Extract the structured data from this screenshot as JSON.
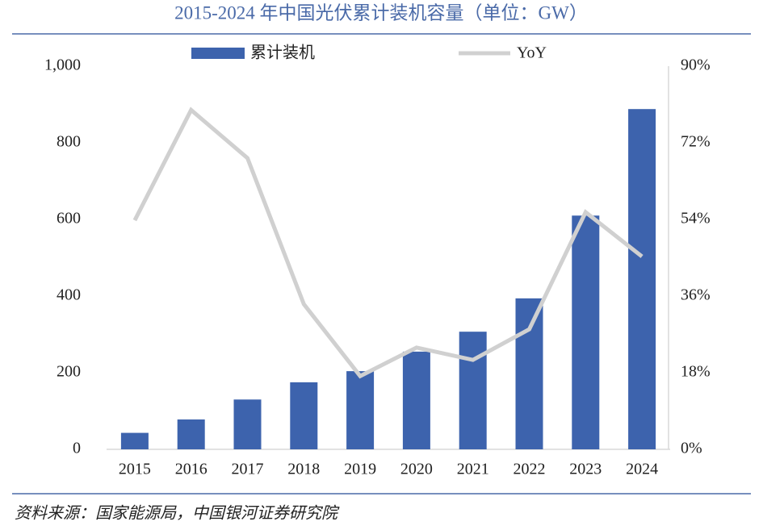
{
  "chart_data": {
    "type": "bar",
    "title": "2015-2024 年中国光伏累计装机容量（单位：GW）",
    "source": "资料来源：国家能源局，中国银河证券研究院",
    "categories": [
      "2015",
      "2016",
      "2017",
      "2018",
      "2019",
      "2020",
      "2021",
      "2022",
      "2023",
      "2024"
    ],
    "series": [
      {
        "name": "累计装机",
        "color": "#3d63ad",
        "values": [
          43,
          78,
          130,
          175,
          204,
          255,
          307,
          394,
          610,
          888
        ]
      },
      {
        "name": "YoY",
        "color": "#d0d0d0",
        "axis": "y2",
        "type": "line",
        "values": [
          53.8,
          79.7,
          68.4,
          34.1,
          17.2,
          23.9,
          21.0,
          28.2,
          55.7,
          45.3
        ]
      }
    ],
    "ylim": [
      0,
      1000
    ],
    "yticks": [
      0,
      200,
      400,
      600,
      800,
      {
        "value": 1000,
        "label": "1,000"
      }
    ],
    "y2lim": [
      0,
      90
    ],
    "y2ticks": [
      {
        "value": 0,
        "label": "0%"
      },
      {
        "value": 18,
        "label": "18%"
      },
      {
        "value": 36,
        "label": "36%"
      },
      {
        "value": 54,
        "label": "54%"
      },
      {
        "value": 72,
        "label": "72%"
      },
      {
        "value": 90,
        "label": "90%"
      }
    ],
    "grid": false
  }
}
